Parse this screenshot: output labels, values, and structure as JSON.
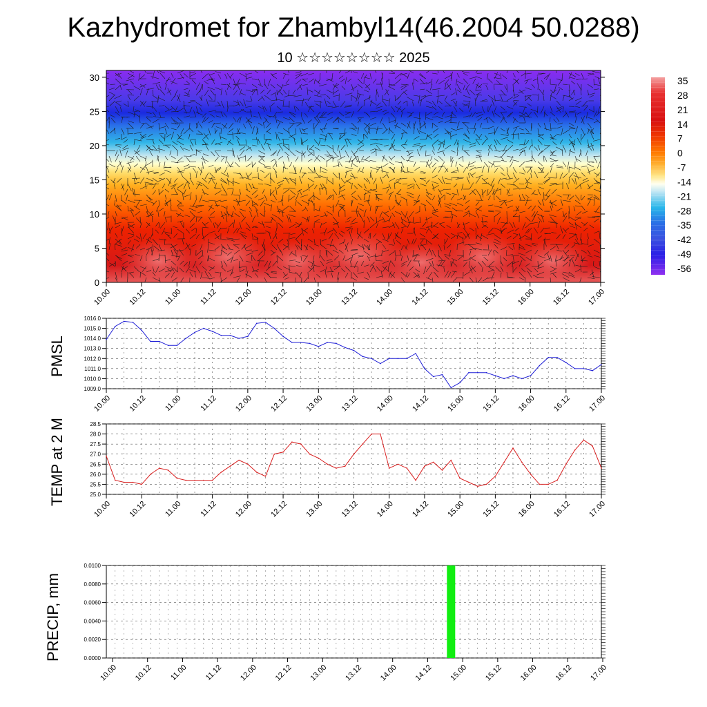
{
  "title": "Kazhydromet for Zhambyl14(46.2004 50.0288)",
  "subtitle": "10 ☆☆☆☆☆☆☆☆ 2025",
  "colors": {
    "pmsl_line": "#1f1fd6",
    "temp_line": "#d81e1e",
    "precip_bar": "#11ee11"
  },
  "chart_data": [
    {
      "id": "cross-section",
      "type": "heatmap",
      "xticks": [
        "10.00",
        "10.12",
        "11.00",
        "11.12",
        "12.00",
        "12.12",
        "13.00",
        "13.12",
        "14.00",
        "14.12",
        "15.00",
        "15.12",
        "16.00",
        "16.12",
        "17.00"
      ],
      "yticks": [
        "0",
        "5",
        "10",
        "15",
        "20",
        "25",
        "30"
      ],
      "ylim": [
        0,
        31
      ],
      "colorbar": {
        "labels": [
          "35",
          "28",
          "21",
          "14",
          "7",
          "0",
          "-7",
          "-14",
          "-21",
          "-28",
          "-35",
          "-42",
          "-49",
          "-56"
        ],
        "range": [
          -60,
          38
        ]
      },
      "has_wind_vectors": true
    },
    {
      "id": "pmsl",
      "type": "line",
      "ylabel": "PMSL",
      "ylim": [
        1009.0,
        1016.0
      ],
      "yticks": [
        "1016.0",
        "1015.0",
        "1014.0",
        "1013.0",
        "1012.0",
        "1011.0",
        "1010.0",
        "1009.0"
      ],
      "xticks": [
        "10.00",
        "10.12",
        "11.00",
        "11.12",
        "12.00",
        "12.12",
        "13.00",
        "13.12",
        "14.00",
        "14.12",
        "15.00",
        "15.12",
        "16.00",
        "16.12",
        "17.00"
      ],
      "grid": true,
      "series": [
        {
          "x": [
            0,
            3,
            6,
            9,
            12,
            15,
            18,
            21,
            24,
            27,
            30,
            33,
            36,
            39,
            42,
            45,
            48,
            51,
            54,
            57,
            60,
            63,
            66,
            69,
            72,
            75,
            78,
            81,
            84,
            87,
            90,
            93,
            96,
            99,
            102,
            105,
            108,
            111,
            114,
            117,
            120,
            123,
            126,
            129,
            132,
            135,
            138,
            141,
            144,
            147,
            150,
            153,
            156,
            159,
            162,
            165,
            168
          ],
          "values": [
            1013.9,
            1015.2,
            1015.7,
            1015.6,
            1014.8,
            1013.7,
            1013.7,
            1013.3,
            1013.3,
            1014.0,
            1014.6,
            1015.0,
            1014.7,
            1014.3,
            1014.3,
            1014.0,
            1014.2,
            1015.5,
            1015.6,
            1015.0,
            1014.2,
            1013.6,
            1013.6,
            1013.5,
            1013.2,
            1013.6,
            1013.5,
            1013.1,
            1012.8,
            1012.2,
            1012.0,
            1011.5,
            1012.0,
            1012.0,
            1012.0,
            1012.5,
            1011.0,
            1010.2,
            1010.4,
            1009.1,
            1009.6,
            1010.6,
            1010.6,
            1010.6,
            1010.3,
            1010.0,
            1010.3,
            1010.0,
            1010.3,
            1011.3,
            1012.1,
            1012.1,
            1011.6,
            1011.0,
            1011.0,
            1010.8,
            1011.4
          ]
        }
      ]
    },
    {
      "id": "temp2m",
      "type": "line",
      "ylabel": "TEMP at 2 M",
      "ylim": [
        25.0,
        28.5
      ],
      "yticks": [
        "28.5",
        "28.0",
        "27.5",
        "27.0",
        "26.5",
        "26.0",
        "25.5",
        "25.0"
      ],
      "xticks": [
        "10.00",
        "10.12",
        "11.00",
        "11.12",
        "12.00",
        "12.12",
        "13.00",
        "13.12",
        "14.00",
        "14.12",
        "15.00",
        "15.12",
        "16.00",
        "16.12",
        "17.00"
      ],
      "grid": true,
      "series": [
        {
          "x": [
            0,
            3,
            6,
            9,
            12,
            15,
            18,
            21,
            24,
            27,
            30,
            33,
            36,
            39,
            42,
            45,
            48,
            51,
            54,
            57,
            60,
            63,
            66,
            69,
            72,
            75,
            78,
            81,
            84,
            87,
            90,
            93,
            96,
            99,
            102,
            105,
            108,
            111,
            114,
            117,
            120,
            123,
            126,
            129,
            132,
            135,
            138,
            141,
            144,
            147,
            150,
            153,
            156,
            159,
            162,
            165,
            168
          ],
          "values": [
            26.9,
            25.7,
            25.6,
            25.6,
            25.5,
            26.0,
            26.3,
            26.2,
            25.8,
            25.7,
            25.7,
            25.7,
            25.7,
            26.1,
            26.4,
            26.7,
            26.5,
            26.1,
            25.9,
            27.0,
            27.1,
            27.6,
            27.5,
            27.0,
            26.8,
            26.5,
            26.3,
            26.4,
            27.0,
            27.5,
            28.0,
            28.0,
            26.3,
            26.5,
            26.3,
            25.7,
            26.4,
            26.6,
            26.2,
            26.7,
            25.8,
            25.6,
            25.4,
            25.5,
            25.9,
            26.6,
            27.3,
            26.6,
            26.0,
            25.5,
            25.5,
            25.7,
            26.5,
            27.2,
            27.7,
            27.4,
            26.3
          ]
        }
      ]
    },
    {
      "id": "precip",
      "type": "bar",
      "ylabel": "PRECIP, mm",
      "ylim": [
        0,
        0.01
      ],
      "yticks": [
        "0.0100",
        "0.0080",
        "0.0060",
        "0.0040",
        "0.0020",
        "0.0000"
      ],
      "xticks": [
        "10.00",
        "10.12",
        "11.00",
        "11.12",
        "12.00",
        "12.12",
        "13.00",
        "13.12",
        "14.00",
        "14.12",
        "15.00",
        "15.12",
        "16.00",
        "16.12",
        "17.00"
      ],
      "grid": true,
      "series": [
        {
          "x": [
            117
          ],
          "values": [
            0.01
          ]
        }
      ]
    }
  ]
}
